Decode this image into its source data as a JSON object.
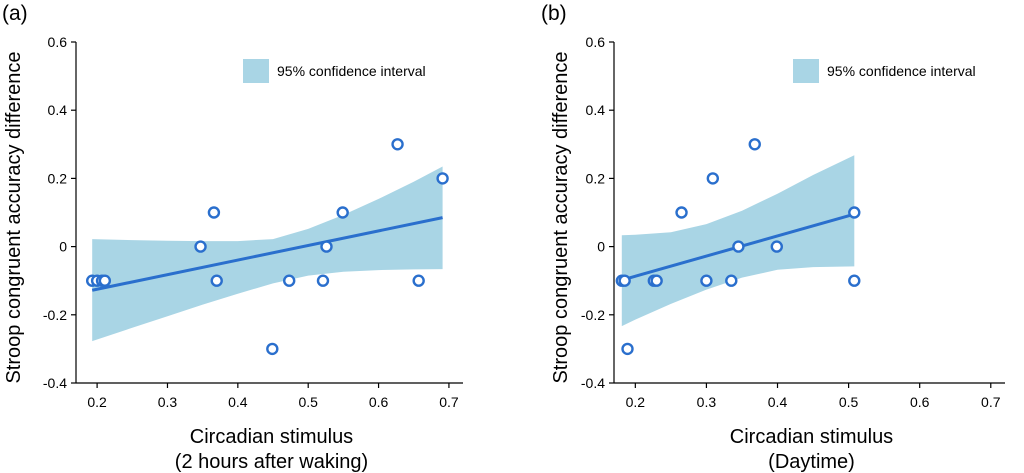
{
  "colors": {
    "ci_fill": "#a9d5e5",
    "line": "#2a6fcd",
    "marker": "#2a6fcd",
    "axis": "#000000"
  },
  "chart_data": [
    {
      "type": "scatter",
      "panel_label": "(a)",
      "xlabel": [
        "Circadian stimulus",
        "(2 hours after waking)"
      ],
      "ylabel": "Stroop congruent accuracy difference",
      "xlim": [
        0.17,
        0.72
      ],
      "ylim": [
        -0.4,
        0.6
      ],
      "xticks": [
        0.2,
        0.3,
        0.4,
        0.5,
        0.6,
        0.7
      ],
      "xtick_labels": [
        "0.2",
        "0.3",
        "0.4",
        "0.5",
        "0.6",
        "0.7"
      ],
      "yticks": [
        -0.4,
        -0.2,
        0,
        0.2,
        0.4,
        0.6
      ],
      "ytick_labels": [
        "-0.4",
        "-0.2",
        "0",
        "0.2",
        "0.4",
        "0.6"
      ],
      "legend": {
        "label": "95% confidence interval",
        "position": "top-right"
      },
      "grid": false,
      "points": [
        {
          "x": 0.193,
          "y": -0.1
        },
        {
          "x": 0.2,
          "y": -0.1
        },
        {
          "x": 0.207,
          "y": -0.1
        },
        {
          "x": 0.211,
          "y": -0.1
        },
        {
          "x": 0.347,
          "y": 0.0
        },
        {
          "x": 0.366,
          "y": 0.1
        },
        {
          "x": 0.37,
          "y": -0.1
        },
        {
          "x": 0.449,
          "y": -0.3
        },
        {
          "x": 0.473,
          "y": -0.1
        },
        {
          "x": 0.521,
          "y": -0.1
        },
        {
          "x": 0.526,
          "y": 0.0
        },
        {
          "x": 0.549,
          "y": 0.1
        },
        {
          "x": 0.627,
          "y": 0.3
        },
        {
          "x": 0.657,
          "y": -0.1
        },
        {
          "x": 0.691,
          "y": 0.2
        }
      ],
      "fit": {
        "x": [
          0.193,
          0.691
        ],
        "y": [
          -0.128,
          0.085
        ]
      },
      "ci_band": {
        "x": [
          0.193,
          0.25,
          0.3,
          0.35,
          0.4,
          0.45,
          0.5,
          0.55,
          0.6,
          0.65,
          0.691
        ],
        "upper": [
          0.022,
          0.019,
          0.017,
          0.016,
          0.016,
          0.022,
          0.052,
          0.093,
          0.14,
          0.19,
          0.235
        ],
        "lower": [
          -0.277,
          -0.238,
          -0.204,
          -0.17,
          -0.138,
          -0.108,
          -0.085,
          -0.074,
          -0.069,
          -0.067,
          -0.066
        ]
      }
    },
    {
      "type": "scatter",
      "panel_label": "(b)",
      "xlabel": [
        "Circadian stimulus",
        "(Daytime)"
      ],
      "ylabel": "Stroop congruent accuracy difference",
      "xlim": [
        0.17,
        0.72
      ],
      "ylim": [
        -0.4,
        0.6
      ],
      "xticks": [
        0.2,
        0.3,
        0.4,
        0.5,
        0.6,
        0.7
      ],
      "xtick_labels": [
        "0.2",
        "0.3",
        "0.4",
        "0.5",
        "0.6",
        "0.7"
      ],
      "yticks": [
        -0.4,
        -0.2,
        0,
        0.2,
        0.4,
        0.6
      ],
      "ytick_labels": [
        "-0.4",
        "-0.2",
        "0",
        "0.2",
        "0.4",
        "0.6"
      ],
      "legend": {
        "label": "95% confidence interval",
        "position": "top-right"
      },
      "grid": false,
      "points": [
        {
          "x": 0.181,
          "y": -0.1
        },
        {
          "x": 0.185,
          "y": -0.1
        },
        {
          "x": 0.189,
          "y": -0.3
        },
        {
          "x": 0.226,
          "y": -0.1
        },
        {
          "x": 0.23,
          "y": -0.1
        },
        {
          "x": 0.265,
          "y": 0.1
        },
        {
          "x": 0.3,
          "y": -0.1
        },
        {
          "x": 0.309,
          "y": 0.2
        },
        {
          "x": 0.335,
          "y": -0.1
        },
        {
          "x": 0.345,
          "y": 0.0
        },
        {
          "x": 0.368,
          "y": 0.3
        },
        {
          "x": 0.399,
          "y": 0.0
        },
        {
          "x": 0.508,
          "y": 0.1
        },
        {
          "x": 0.508,
          "y": -0.1
        }
      ],
      "fit": {
        "x": [
          0.181,
          0.508
        ],
        "y": [
          -0.098,
          0.095
        ]
      },
      "ci_band": {
        "x": [
          0.181,
          0.2,
          0.25,
          0.3,
          0.35,
          0.4,
          0.45,
          0.508
        ],
        "upper": [
          0.033,
          0.035,
          0.042,
          0.066,
          0.105,
          0.155,
          0.21,
          0.268
        ],
        "lower": [
          -0.233,
          -0.214,
          -0.168,
          -0.126,
          -0.091,
          -0.068,
          -0.06,
          -0.058
        ]
      }
    }
  ]
}
